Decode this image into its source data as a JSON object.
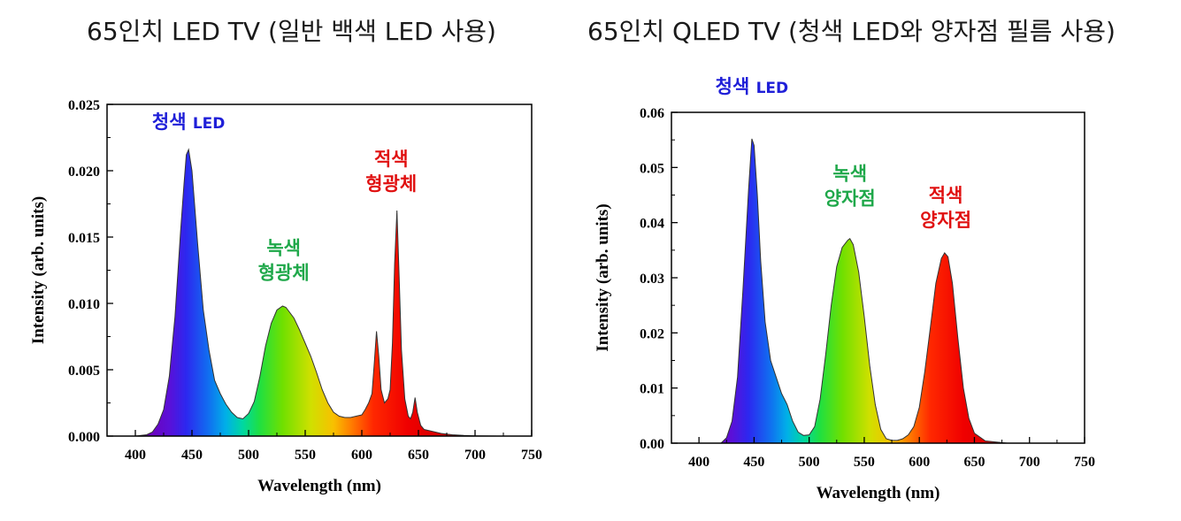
{
  "headlines": {
    "left": "65인치 LED TV (일반 백색 LED 사용)",
    "right": "65인치 QLED TV (청색 LED와 양자점 필름 사용)"
  },
  "colors": {
    "blue": "#1f1fd8",
    "green": "#1fa84a",
    "red": "#e01010",
    "axis": "#000000",
    "outline": "#333333"
  },
  "chart_data": [
    {
      "type": "area",
      "xlabel": "Wavelength (nm)",
      "ylabel": "Intensity (arb. units)",
      "xlim": [
        375,
        750
      ],
      "ylim": [
        0,
        0.025
      ],
      "xticks": [
        400,
        450,
        500,
        550,
        600,
        650,
        700,
        750
      ],
      "yticks": [
        "0.000",
        "0.005",
        "0.010",
        "0.015",
        "0.020",
        "0.025"
      ],
      "fill": "spectral gradient",
      "x": [
        375,
        400,
        410,
        415,
        420,
        425,
        430,
        435,
        440,
        443,
        445,
        447,
        450,
        455,
        460,
        465,
        470,
        475,
        480,
        485,
        490,
        495,
        500,
        505,
        510,
        515,
        520,
        525,
        530,
        533,
        540,
        545,
        550,
        555,
        560,
        565,
        570,
        575,
        580,
        585,
        590,
        595,
        600,
        603,
        606,
        609,
        611,
        613,
        615,
        617,
        620,
        623,
        625,
        627,
        629,
        631,
        633,
        635,
        638,
        641,
        643,
        645,
        647,
        649,
        652,
        655,
        660,
        665,
        670,
        680,
        690,
        700,
        720,
        750
      ],
      "values": [
        0,
        0,
        0.0001,
        0.0003,
        0.0009,
        0.002,
        0.0045,
        0.009,
        0.0155,
        0.019,
        0.0212,
        0.0216,
        0.02,
        0.0145,
        0.0095,
        0.0065,
        0.0042,
        0.0032,
        0.0024,
        0.0018,
        0.0014,
        0.0013,
        0.0017,
        0.0026,
        0.0045,
        0.0068,
        0.0085,
        0.0095,
        0.0098,
        0.0097,
        0.0089,
        0.008,
        0.007,
        0.006,
        0.0048,
        0.0035,
        0.0025,
        0.0018,
        0.0015,
        0.0014,
        0.0014,
        0.0015,
        0.0016,
        0.002,
        0.0025,
        0.0032,
        0.0055,
        0.0079,
        0.006,
        0.0035,
        0.0025,
        0.0028,
        0.0035,
        0.007,
        0.013,
        0.017,
        0.012,
        0.0065,
        0.0028,
        0.0015,
        0.0013,
        0.0018,
        0.0029,
        0.0018,
        0.0008,
        0.0005,
        0.0004,
        0.0003,
        0.0002,
        0.0001,
        5e-05,
        2e-05,
        0,
        0
      ],
      "annotations": [
        {
          "text": "청색",
          "text2": "LED",
          "x": 447,
          "y": 0.0232,
          "color": "blue"
        },
        {
          "text": "녹색",
          "text2": "형광체",
          "x": 531,
          "y": 0.0137,
          "color": "green"
        },
        {
          "text": "적색",
          "text2": "형광체",
          "x": 626,
          "y": 0.0204,
          "color": "red"
        }
      ]
    },
    {
      "type": "area",
      "xlabel": "Wavelength (nm)",
      "ylabel": "Intensity (arb. units)",
      "xlim": [
        375,
        750
      ],
      "ylim": [
        0,
        0.06
      ],
      "xticks": [
        400,
        450,
        500,
        550,
        600,
        650,
        700,
        750
      ],
      "yticks": [
        "0.00",
        "0.01",
        "0.02",
        "0.03",
        "0.04",
        "0.05",
        "0.06"
      ],
      "fill": "spectral gradient",
      "x": [
        375,
        420,
        425,
        430,
        435,
        440,
        445,
        448,
        450,
        453,
        456,
        460,
        465,
        470,
        475,
        480,
        485,
        490,
        495,
        500,
        505,
        510,
        515,
        520,
        525,
        530,
        535,
        537,
        540,
        545,
        550,
        555,
        560,
        565,
        570,
        575,
        580,
        585,
        590,
        595,
        600,
        605,
        610,
        615,
        620,
        623,
        626,
        630,
        635,
        640,
        645,
        650,
        660,
        680,
        750
      ],
      "values": [
        0,
        0,
        0.001,
        0.004,
        0.012,
        0.028,
        0.046,
        0.0552,
        0.054,
        0.045,
        0.033,
        0.022,
        0.015,
        0.012,
        0.009,
        0.007,
        0.004,
        0.002,
        0.0014,
        0.0015,
        0.003,
        0.008,
        0.016,
        0.025,
        0.032,
        0.0355,
        0.0368,
        0.0371,
        0.036,
        0.031,
        0.023,
        0.014,
        0.007,
        0.0025,
        0.0008,
        0.0005,
        0.0005,
        0.0008,
        0.0015,
        0.003,
        0.0065,
        0.013,
        0.021,
        0.029,
        0.0335,
        0.0345,
        0.0338,
        0.029,
        0.019,
        0.01,
        0.0045,
        0.0018,
        0.0004,
        0,
        0
      ],
      "annotations": [
        {
          "text": "청색",
          "text2": "LED",
          "x": 448,
          "y": 0.0635,
          "color": "blue"
        },
        {
          "text": "녹색",
          "text2": "양자점",
          "x": 537,
          "y": 0.0477,
          "color": "green"
        },
        {
          "text": "적색",
          "text2": "양자점",
          "x": 624,
          "y": 0.0438,
          "color": "red"
        }
      ]
    }
  ]
}
